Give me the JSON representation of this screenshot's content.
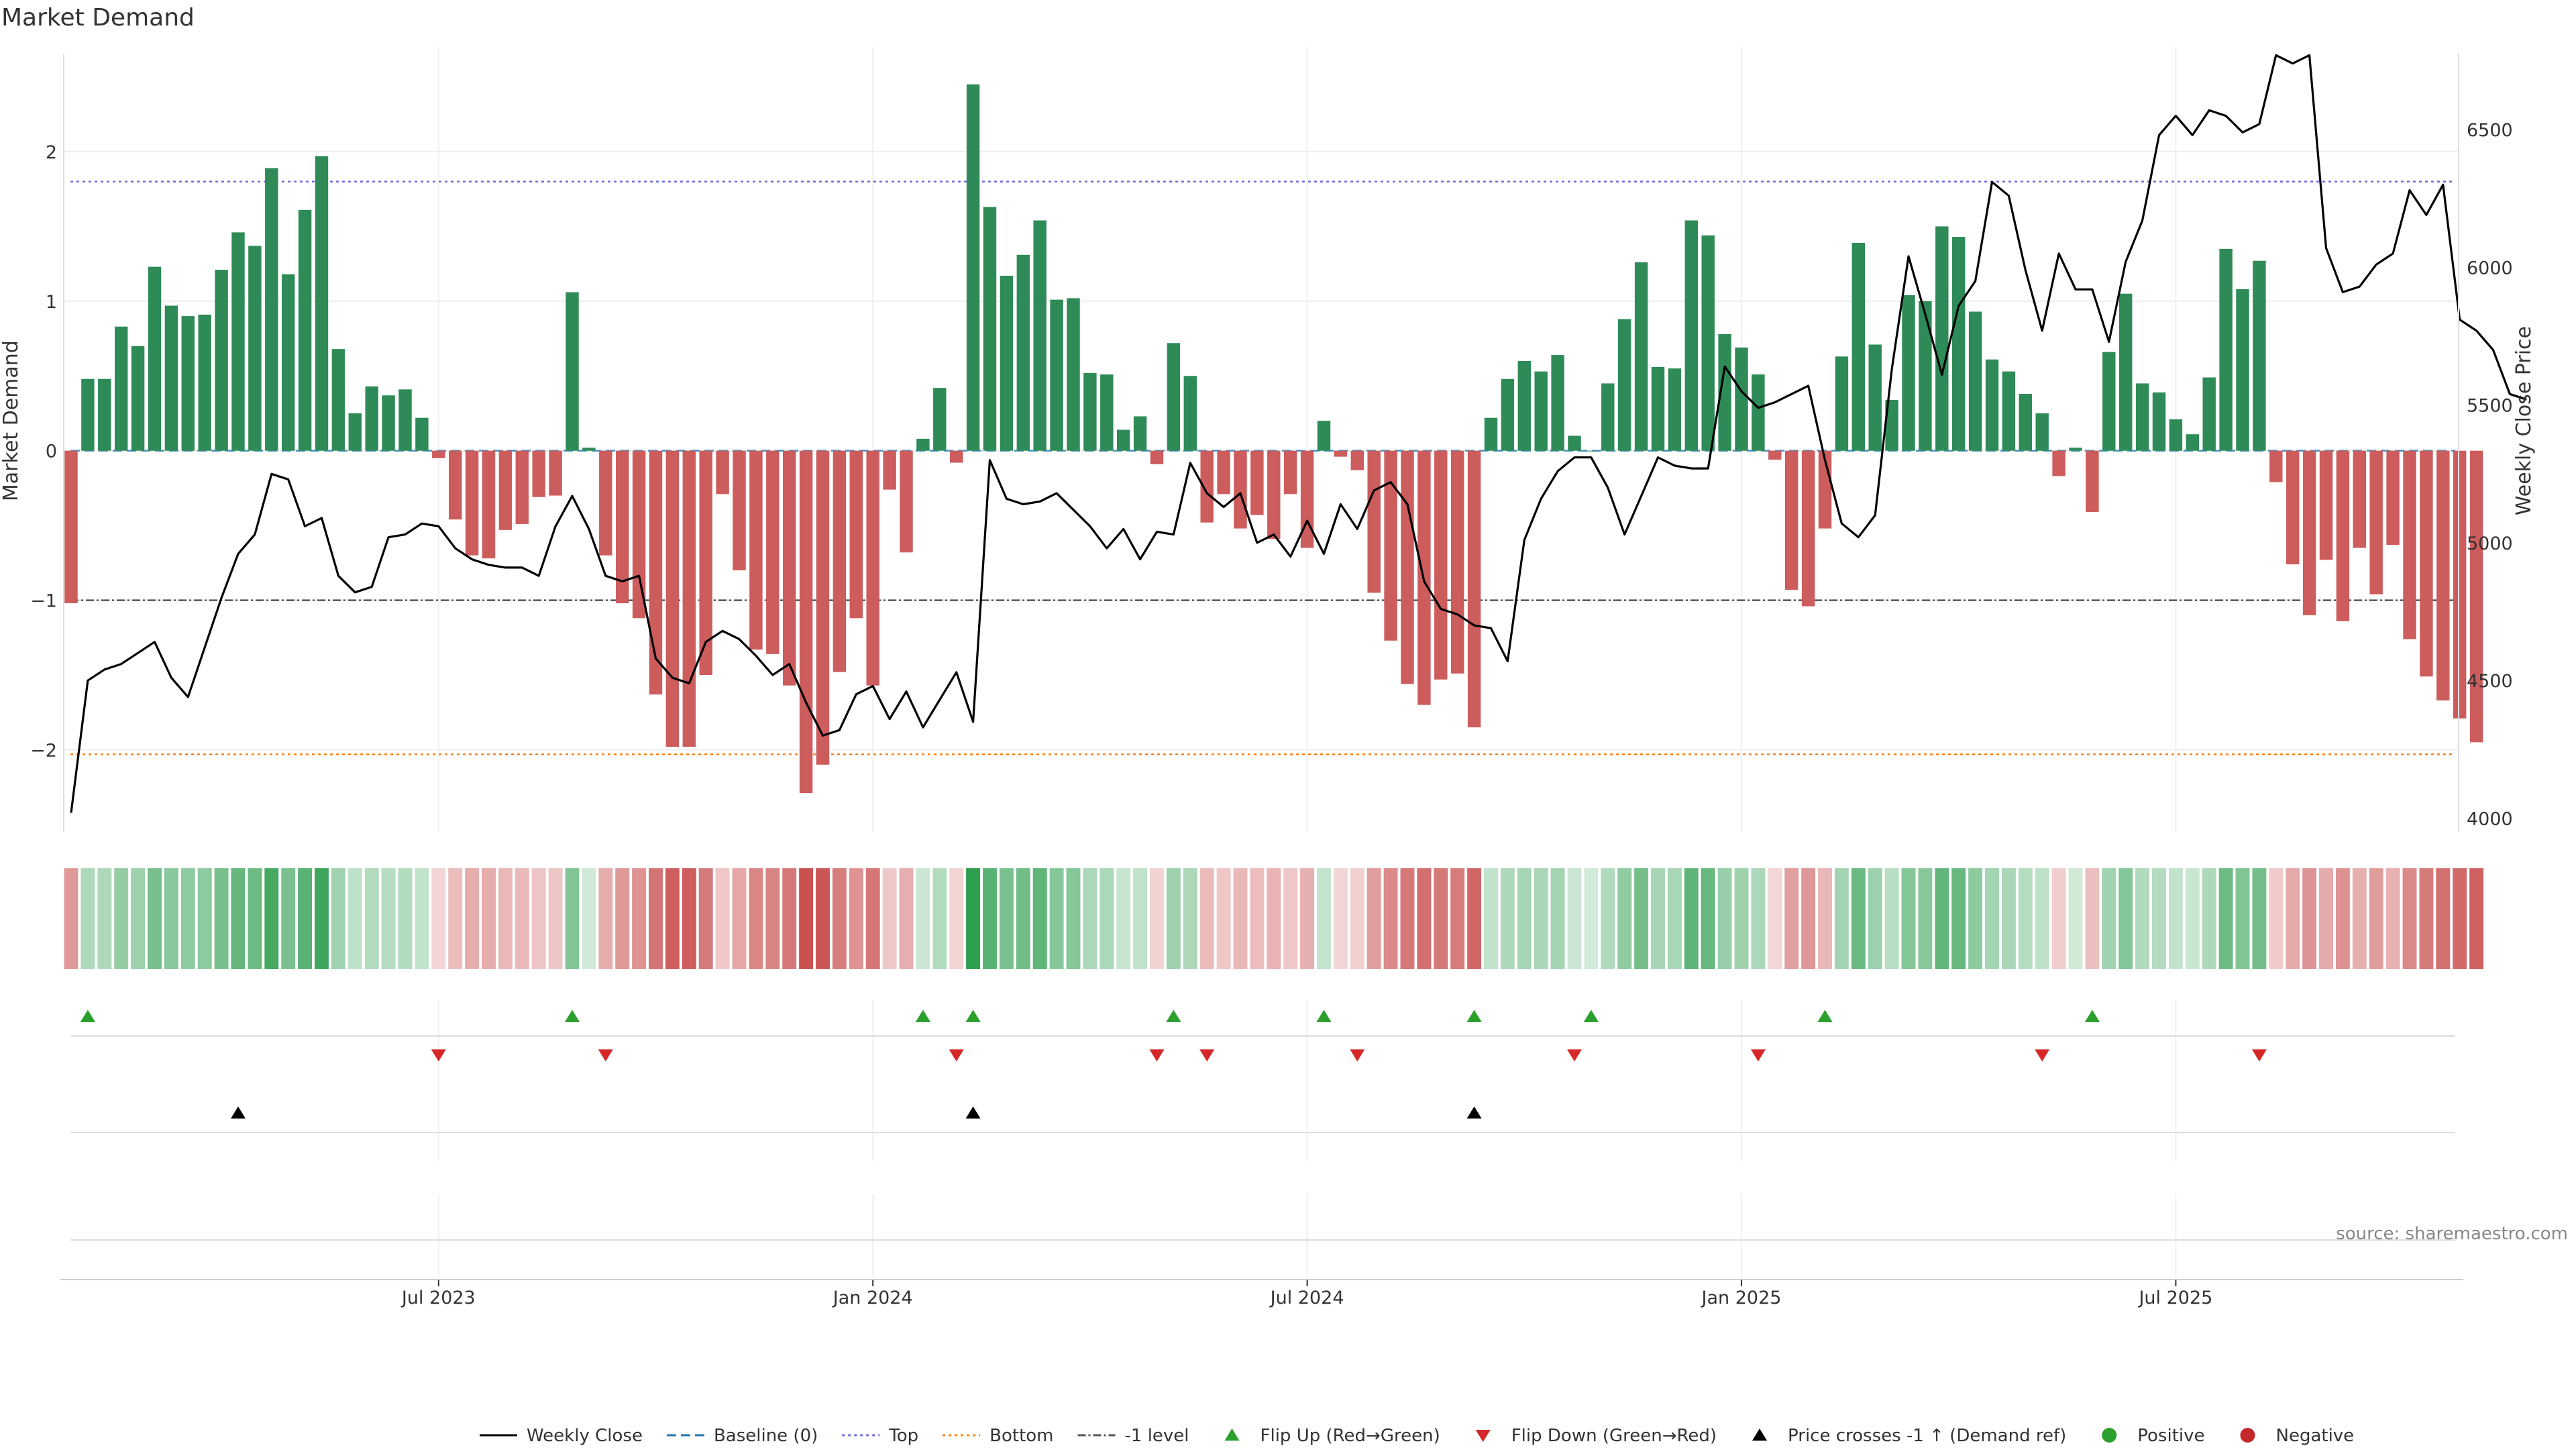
{
  "chart_data": {
    "type": "bar",
    "title": "Market Demand",
    "ylabel": "Market Demand",
    "y2label": "Weekly Close Price",
    "source": "source: sharemaestro.com",
    "ylim": [
      -2.55,
      2.7
    ],
    "y2lim": [
      3950,
      6800
    ],
    "yticks": [
      -2,
      -1,
      0,
      1,
      2
    ],
    "y2ticks": [
      4000,
      4500,
      5000,
      5500,
      6000,
      6500
    ],
    "reference_lines": {
      "top": 1.8,
      "bottom": -2.03,
      "minus_one": -1,
      "baseline": 0
    },
    "xticks": [
      {
        "label": "Jul 2023",
        "week": 22
      },
      {
        "label": "Jan 2024",
        "week": 48
      },
      {
        "label": "Jul 2024",
        "week": 74
      },
      {
        "label": "Jan 2025",
        "week": 100
      },
      {
        "label": "Jul 2025",
        "week": 126
      }
    ],
    "series": [
      {
        "name": "Market Demand",
        "type": "bar",
        "values": [
          -1.02,
          0.48,
          0.48,
          0.83,
          0.7,
          1.23,
          0.97,
          0.9,
          0.91,
          1.21,
          1.46,
          1.37,
          1.89,
          1.18,
          1.61,
          1.97,
          0.68,
          0.25,
          0.43,
          0.37,
          0.41,
          0.22,
          -0.05,
          -0.46,
          -0.7,
          -0.72,
          -0.53,
          -0.49,
          -0.31,
          -0.3,
          1.06,
          0.02,
          -0.7,
          -1.02,
          -1.12,
          -1.63,
          -1.98,
          -1.98,
          -1.5,
          -0.29,
          -0.8,
          -1.33,
          -1.36,
          -1.57,
          -2.29,
          -2.1,
          -1.48,
          -1.12,
          -1.57,
          -0.26,
          -0.68,
          0.08,
          0.42,
          -0.08,
          2.45,
          1.63,
          1.17,
          1.31,
          1.54,
          1.01,
          1.02,
          0.52,
          0.51,
          0.14,
          0.23,
          -0.09,
          0.72,
          0.5,
          -0.48,
          -0.29,
          -0.52,
          -0.43,
          -0.59,
          -0.29,
          -0.65,
          0.2,
          -0.04,
          -0.13,
          -0.95,
          -1.27,
          -1.56,
          -1.7,
          -1.53,
          -1.49,
          -1.85,
          0.22,
          0.48,
          0.6,
          0.53,
          0.64,
          0.1,
          0.0,
          0.45,
          0.88,
          1.26,
          0.56,
          0.55,
          1.54,
          1.44,
          0.78,
          0.69,
          0.51,
          -0.06,
          -0.93,
          -1.04,
          -0.52,
          0.63,
          1.39,
          0.71,
          0.34,
          1.04,
          1.0,
          1.5,
          1.43,
          0.93,
          0.61,
          0.53,
          0.38,
          0.25,
          -0.17,
          0.02,
          -0.41,
          0.66,
          1.05,
          0.45,
          0.39,
          0.21,
          0.11,
          0.49,
          1.35,
          1.08,
          1.27,
          -0.21,
          -0.76,
          -1.1,
          -0.73,
          -1.14,
          -0.65,
          -0.96,
          -0.63,
          -1.26,
          -1.51,
          -1.67,
          -1.79,
          -1.95
        ]
      },
      {
        "name": "Weekly Close",
        "type": "line",
        "values": [
          4020,
          4500,
          4540,
          4560,
          4600,
          4640,
          4510,
          4440,
          4620,
          4800,
          4960,
          5030,
          5250,
          5230,
          5060,
          5090,
          4880,
          4820,
          4840,
          5020,
          5030,
          5070,
          5060,
          4980,
          4940,
          4920,
          4910,
          4910,
          4880,
          5060,
          5170,
          5050,
          4880,
          4860,
          4880,
          4580,
          4510,
          4490,
          4640,
          4680,
          4650,
          4590,
          4520,
          4560,
          4420,
          4300,
          4320,
          4450,
          4480,
          4360,
          4460,
          4330,
          4430,
          4530,
          4350,
          5300,
          5160,
          5140,
          5150,
          5180,
          5120,
          5060,
          4980,
          5050,
          4940,
          5040,
          5030,
          5290,
          5180,
          5130,
          5180,
          5000,
          5030,
          4950,
          5080,
          4960,
          5140,
          5050,
          5190,
          5220,
          5140,
          4860,
          4760,
          4740,
          4700,
          4690,
          4570,
          5010,
          5160,
          5260,
          5310,
          5310,
          5200,
          5030,
          5170,
          5310,
          5280,
          5270,
          5270,
          5640,
          5550,
          5490,
          5510,
          5540,
          5570,
          5300,
          5070,
          5020,
          5100,
          5630,
          6040,
          5830,
          5610,
          5860,
          5950,
          6310,
          6260,
          5990,
          5770,
          6050,
          5920,
          5920,
          5730,
          6020,
          6170,
          6480,
          6550,
          6480,
          6570,
          6550,
          6490,
          6520,
          6770,
          6740,
          6770,
          6070,
          5910,
          5930,
          6010,
          6050,
          6280,
          6190,
          6300,
          5810,
          5770,
          5700,
          5540,
          5520
        ]
      }
    ],
    "flip_up_weeks": [
      1,
      30,
      51,
      54,
      66,
      75,
      84,
      91,
      105,
      121
    ],
    "flip_down_weeks": [
      22,
      32,
      53,
      65,
      68,
      77,
      90,
      101,
      118,
      131
    ],
    "price_cross_weeks": [
      10,
      54,
      84
    ],
    "legend": [
      {
        "label": "Weekly Close",
        "marker": "line",
        "color": "#000000"
      },
      {
        "label": "Baseline (0)",
        "marker": "dash",
        "color": "#1f77b4"
      },
      {
        "label": "Top",
        "marker": "dot",
        "color": "#6b6bd6"
      },
      {
        "label": "Bottom",
        "marker": "dot",
        "color": "#ff7f0e"
      },
      {
        "label": "-1 level",
        "marker": "dash-dot",
        "color": "#555555"
      },
      {
        "label": "Flip Up (Red→Green)",
        "marker": "triangle-up",
        "color": "#2ca02c"
      },
      {
        "label": "Flip Down (Green→Red)",
        "marker": "triangle-down",
        "color": "#d62728"
      },
      {
        "label": "Price crosses -1 ↑ (Demand ref)",
        "marker": "triangle-up",
        "color": "#000000"
      },
      {
        "label": "Positive",
        "marker": "circle",
        "color": "#2ca02c"
      },
      {
        "label": "Negative",
        "marker": "circle",
        "color": "#c4282a"
      }
    ],
    "colors": {
      "positive": "#2e8b57",
      "negative": "#cd5c5c",
      "line": "#000000"
    }
  }
}
